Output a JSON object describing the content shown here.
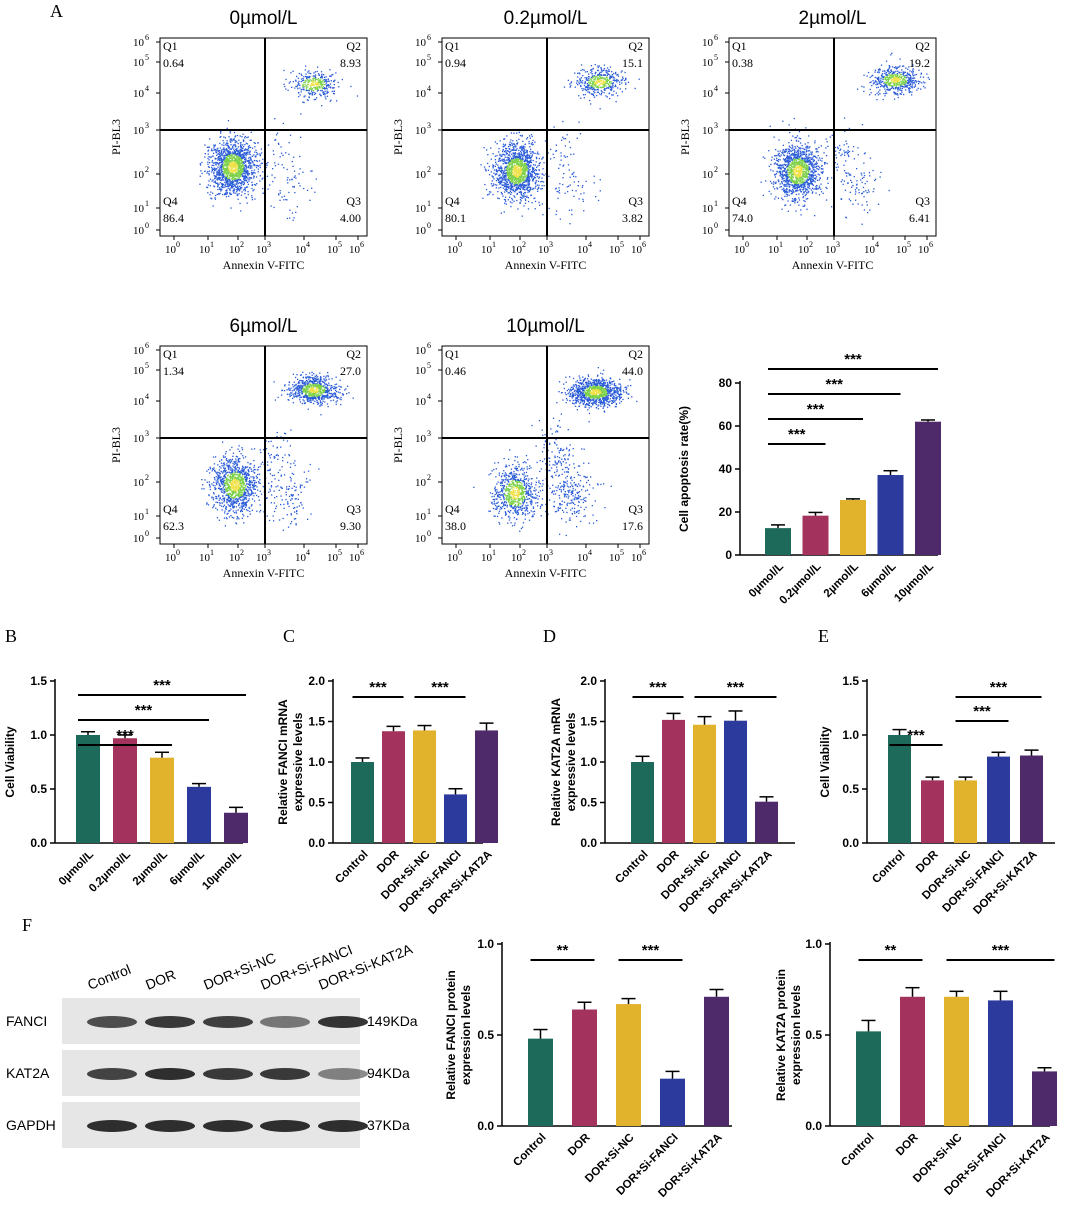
{
  "panel_labels": {
    "A": "A",
    "B": "B",
    "C": "C",
    "D": "D",
    "E": "E",
    "F": "F"
  },
  "colors": {
    "g1": "#1d6a5a",
    "g2": "#a3335c",
    "g3": "#e1b22c",
    "g4": "#2b3a9c",
    "g5": "#4f2a6a",
    "dot": "#2a5bd7",
    "dense": "#7dd14a",
    "core": "#f0e14a",
    "axis": "#000000"
  },
  "flow_panels": [
    {
      "title": "0µmol/L",
      "q1": "0.64",
      "q2": "8.93",
      "q3": "4.00",
      "q4": "86.4"
    },
    {
      "title": "0.2µmol/L",
      "q1": "0.94",
      "q2": "15.1",
      "q3": "3.82",
      "q4": "80.1"
    },
    {
      "title": "2µmol/L",
      "q1": "0.38",
      "q2": "19.2",
      "q3": "6.41",
      "q4": "74.0"
    },
    {
      "title": "6µmol/L",
      "q1": "1.34",
      "q2": "27.0",
      "q3": "9.30",
      "q4": "62.3"
    },
    {
      "title": "10µmol/L",
      "q1": "0.46",
      "q2": "44.0",
      "q3": "17.6",
      "q4": "38.0"
    }
  ],
  "flow_labels": {
    "q1": "Q1",
    "q2": "Q2",
    "q3": "Q3",
    "q4": "Q4",
    "xlabel": "Annexin V-FITC",
    "ylabel": "PI-BL3",
    "ticks": [
      "0",
      "1",
      "2",
      "3",
      "4",
      "5",
      "6"
    ],
    "tick_base": "10"
  },
  "western": {
    "lanes": [
      "Control",
      "DOR",
      "DOR+Si-NC",
      "DOR+Si-FANCI",
      "DOR+Si-KAT2A"
    ],
    "bands": [
      {
        "name": "FANCI",
        "size": "149KDa"
      },
      {
        "name": "KAT2A",
        "size": "94KDa"
      },
      {
        "name": "GAPDH",
        "size": "37KDa"
      }
    ]
  },
  "chart_data": [
    {
      "id": "apoptosis",
      "panel": "A",
      "type": "bar",
      "categories": [
        "0µmol/L",
        "0.2µmol/L",
        "2µmol/L",
        "6µmol/L",
        "10µmol/L"
      ],
      "values": [
        12.5,
        18.3,
        25.6,
        37.2,
        62.0
      ],
      "errors": [
        1.5,
        1.5,
        0.5,
        2.0,
        0.8
      ],
      "ylabel": "Cell apoptosis rate(%)",
      "ylim": [
        0,
        80
      ],
      "yticks": [
        "0",
        "20",
        "40",
        "60",
        "80"
      ],
      "ytick_values": [
        0,
        20,
        40,
        60,
        80
      ],
      "sig": [
        {
          "from": 0,
          "to": 1,
          "label": "***"
        },
        {
          "from": 0,
          "to": 2,
          "label": "***"
        },
        {
          "from": 0,
          "to": 3,
          "label": "***"
        },
        {
          "from": 0,
          "to": 4,
          "label": "***"
        }
      ]
    },
    {
      "id": "viab1",
      "panel": "B",
      "type": "bar",
      "categories": [
        "0µmol/L",
        "0.2µmol/L",
        "2µmol/L",
        "6µmol/L",
        "10µmol/L"
      ],
      "values": [
        1.0,
        0.97,
        0.79,
        0.52,
        0.28
      ],
      "errors": [
        0.03,
        0.03,
        0.05,
        0.03,
        0.05
      ],
      "ylabel": "Cell Viability",
      "ylim": [
        0,
        1.5
      ],
      "yticks": [
        "0.0",
        "0.5",
        "1.0",
        "1.5"
      ],
      "ytick_values": [
        0,
        0.5,
        1,
        1.5
      ],
      "sig": [
        {
          "from": 0,
          "to": 2,
          "label": "***"
        },
        {
          "from": 0,
          "to": 3,
          "label": "***"
        },
        {
          "from": 0,
          "to": 4,
          "label": "***"
        }
      ]
    },
    {
      "id": "fanci_mrna",
      "panel": "C",
      "type": "bar",
      "categories": [
        "Control",
        "DOR",
        "DOR+Si-NC",
        "DOR+Si-FANCI",
        "DOR+Si-KAT2A"
      ],
      "values": [
        1.0,
        1.38,
        1.39,
        0.6,
        1.39
      ],
      "errors": [
        0.05,
        0.06,
        0.06,
        0.07,
        0.09
      ],
      "ylabel": "Relative FANCI mRNA expressive levels",
      "ylim": [
        0,
        2.0
      ],
      "yticks": [
        "0.0",
        "0.5",
        "1.0",
        "1.5",
        "2.0"
      ],
      "ytick_values": [
        0,
        0.5,
        1,
        1.5,
        2
      ],
      "sig": [
        {
          "from": 0,
          "to": 1,
          "label": "***"
        },
        {
          "from": 2,
          "to": 3,
          "label": "***"
        }
      ]
    },
    {
      "id": "kat2a_mrna",
      "panel": "D",
      "type": "bar",
      "categories": [
        "Control",
        "DOR",
        "DOR+Si-NC",
        "DOR+Si-FANCI",
        "DOR+Si-KAT2A"
      ],
      "values": [
        1.0,
        1.52,
        1.46,
        1.51,
        0.51
      ],
      "errors": [
        0.07,
        0.08,
        0.1,
        0.12,
        0.06
      ],
      "ylabel": "Relative KAT2A mRNA expressive levels",
      "ylim": [
        0,
        2.0
      ],
      "yticks": [
        "0.0",
        "0.5",
        "1.0",
        "1.5",
        "2.0"
      ],
      "ytick_values": [
        0,
        0.5,
        1,
        1.5,
        2
      ],
      "sig": [
        {
          "from": 0,
          "to": 1,
          "label": "***"
        },
        {
          "from": 2,
          "to": 4,
          "label": "***"
        }
      ]
    },
    {
      "id": "viab2",
      "panel": "E",
      "type": "bar",
      "categories": [
        "Control",
        "DOR",
        "DOR+Si-NC",
        "DOR+Si-FANCI",
        "DOR+Si-KAT2A"
      ],
      "values": [
        1.0,
        0.58,
        0.58,
        0.8,
        0.81
      ],
      "errors": [
        0.05,
        0.03,
        0.03,
        0.04,
        0.05
      ],
      "ylabel": "Cell Viability",
      "ylim": [
        0,
        1.5
      ],
      "yticks": [
        "0.0",
        "0.5",
        "1.0",
        "1.5"
      ],
      "ytick_values": [
        0,
        0.5,
        1,
        1.5
      ],
      "sig": [
        {
          "from": 0,
          "to": 1,
          "label": "***"
        },
        {
          "from": 2,
          "to": 3,
          "label": "***"
        },
        {
          "from": 2,
          "to": 4,
          "label": "***"
        }
      ]
    },
    {
      "id": "fanci_prot",
      "panel": "F",
      "type": "bar",
      "categories": [
        "Control",
        "DOR",
        "DOR+Si-NC",
        "DOR+Si-FANCI",
        "DOR+Si-KAT2A"
      ],
      "values": [
        0.48,
        0.64,
        0.67,
        0.26,
        0.71
      ],
      "errors": [
        0.05,
        0.04,
        0.03,
        0.04,
        0.04
      ],
      "ylabel": "Relative FANCI protein expression levels",
      "ylim": [
        0,
        1.0
      ],
      "yticks": [
        "0.0",
        "0.5",
        "1.0"
      ],
      "ytick_values": [
        0,
        0.5,
        1
      ],
      "sig": [
        {
          "from": 0,
          "to": 1,
          "label": "**"
        },
        {
          "from": 2,
          "to": 3,
          "label": "***"
        }
      ]
    },
    {
      "id": "kat2a_prot",
      "panel": "F",
      "type": "bar",
      "categories": [
        "Control",
        "DOR",
        "DOR+Si-NC",
        "DOR+Si-FANCI",
        "DOR+Si-KAT2A"
      ],
      "values": [
        0.52,
        0.71,
        0.71,
        0.69,
        0.3
      ],
      "errors": [
        0.06,
        0.05,
        0.03,
        0.05,
        0.02
      ],
      "ylabel": "Relative KAT2A protein expression levels",
      "ylim": [
        0,
        1.0
      ],
      "yticks": [
        "0.0",
        "0.5",
        "1.0"
      ],
      "ytick_values": [
        0,
        0.5,
        1
      ],
      "sig": [
        {
          "from": 0,
          "to": 1,
          "label": "**"
        },
        {
          "from": 2,
          "to": 4,
          "label": "***"
        }
      ]
    }
  ]
}
